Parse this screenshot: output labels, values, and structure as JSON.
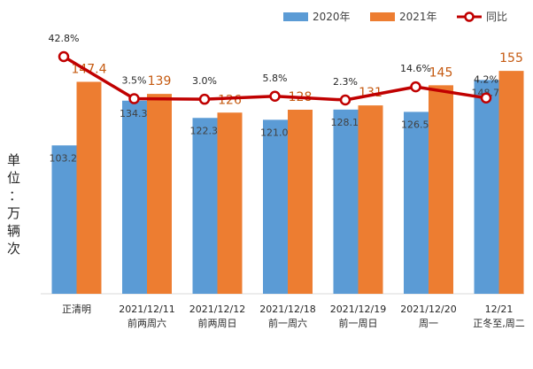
{
  "chart_data": {
    "type": "bar",
    "title": "",
    "ylabel": "单位：万辆次",
    "ylim": [
      0,
      160
    ],
    "categories": [
      [
        "正清明"
      ],
      [
        "2021/12/11",
        "前两周六"
      ],
      [
        "2021/12/12",
        "前两周日"
      ],
      [
        "2021/12/18",
        "前一周六"
      ],
      [
        "2021/12/19",
        "前一周日"
      ],
      [
        "2021/12/20",
        "周一"
      ],
      [
        "12/21",
        "正冬至,周二"
      ]
    ],
    "series": [
      {
        "name": "2020年",
        "color": "#5B9BD5",
        "values": [
          103.2,
          134.3,
          122.3,
          121.0,
          128.1,
          126.5,
          148.7
        ],
        "labels": [
          "103.2",
          "134.3",
          "122.3",
          "121.0",
          "128.1",
          "126.5",
          "148.7"
        ]
      },
      {
        "name": "2021年",
        "color": "#ED7D31",
        "values": [
          147.4,
          139,
          126,
          128,
          131,
          145,
          155
        ],
        "labels": [
          "147.4",
          "139",
          "126",
          "128",
          "131",
          "145",
          "155"
        ]
      }
    ],
    "line_series": {
      "name": "同比",
      "color": "#C00000",
      "type": "line",
      "values": [
        42.8,
        3.5,
        3.0,
        5.8,
        2.3,
        14.6,
        4.2
      ],
      "labels": [
        "42.8%",
        "3.5%",
        "3.0%",
        "5.8%",
        "2.3%",
        "14.6%",
        "4.2%"
      ],
      "unit": "%"
    },
    "legend_position": "top-right"
  }
}
